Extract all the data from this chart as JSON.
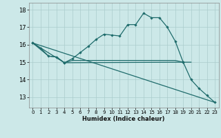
{
  "xlabel": "Humidex (Indice chaleur)",
  "xlim": [
    -0.5,
    23.5
  ],
  "ylim": [
    12.4,
    18.4
  ],
  "yticks": [
    13,
    14,
    15,
    16,
    17,
    18
  ],
  "xticks": [
    0,
    1,
    2,
    3,
    4,
    5,
    6,
    7,
    8,
    9,
    10,
    11,
    12,
    13,
    14,
    15,
    16,
    17,
    18,
    19,
    20,
    21,
    22,
    23
  ],
  "bg_color": "#cce8e8",
  "line_color": "#1e6b6b",
  "grid_color": "#b0d4d4",
  "line1": {
    "x": [
      0,
      1,
      2,
      3,
      4,
      5,
      6,
      7,
      8,
      9,
      10,
      11,
      12,
      13,
      14,
      15,
      16,
      17,
      18,
      19
    ],
    "y": [
      16.1,
      15.8,
      15.35,
      15.3,
      14.97,
      15.2,
      15.55,
      15.9,
      16.3,
      16.6,
      16.55,
      16.5,
      17.15,
      17.15,
      17.8,
      17.55,
      17.55,
      17.0,
      16.2,
      15.0
    ]
  },
  "line2": {
    "x": [
      0,
      2,
      3,
      4,
      5,
      6,
      7,
      8,
      9,
      10,
      11,
      12,
      13,
      14,
      15,
      16,
      17,
      18,
      19,
      20
    ],
    "y": [
      16.1,
      15.35,
      15.3,
      14.97,
      15.1,
      15.1,
      15.1,
      15.1,
      15.1,
      15.1,
      15.1,
      15.1,
      15.1,
      15.1,
      15.1,
      15.1,
      15.1,
      15.1,
      15.0,
      15.0
    ]
  },
  "line3": {
    "x": [
      0,
      23
    ],
    "y": [
      16.1,
      12.7
    ]
  },
  "line4": {
    "x": [
      0,
      4,
      19,
      20,
      21,
      22,
      23
    ],
    "y": [
      16.1,
      14.97,
      15.0,
      14.0,
      13.5,
      13.1,
      12.7
    ]
  }
}
